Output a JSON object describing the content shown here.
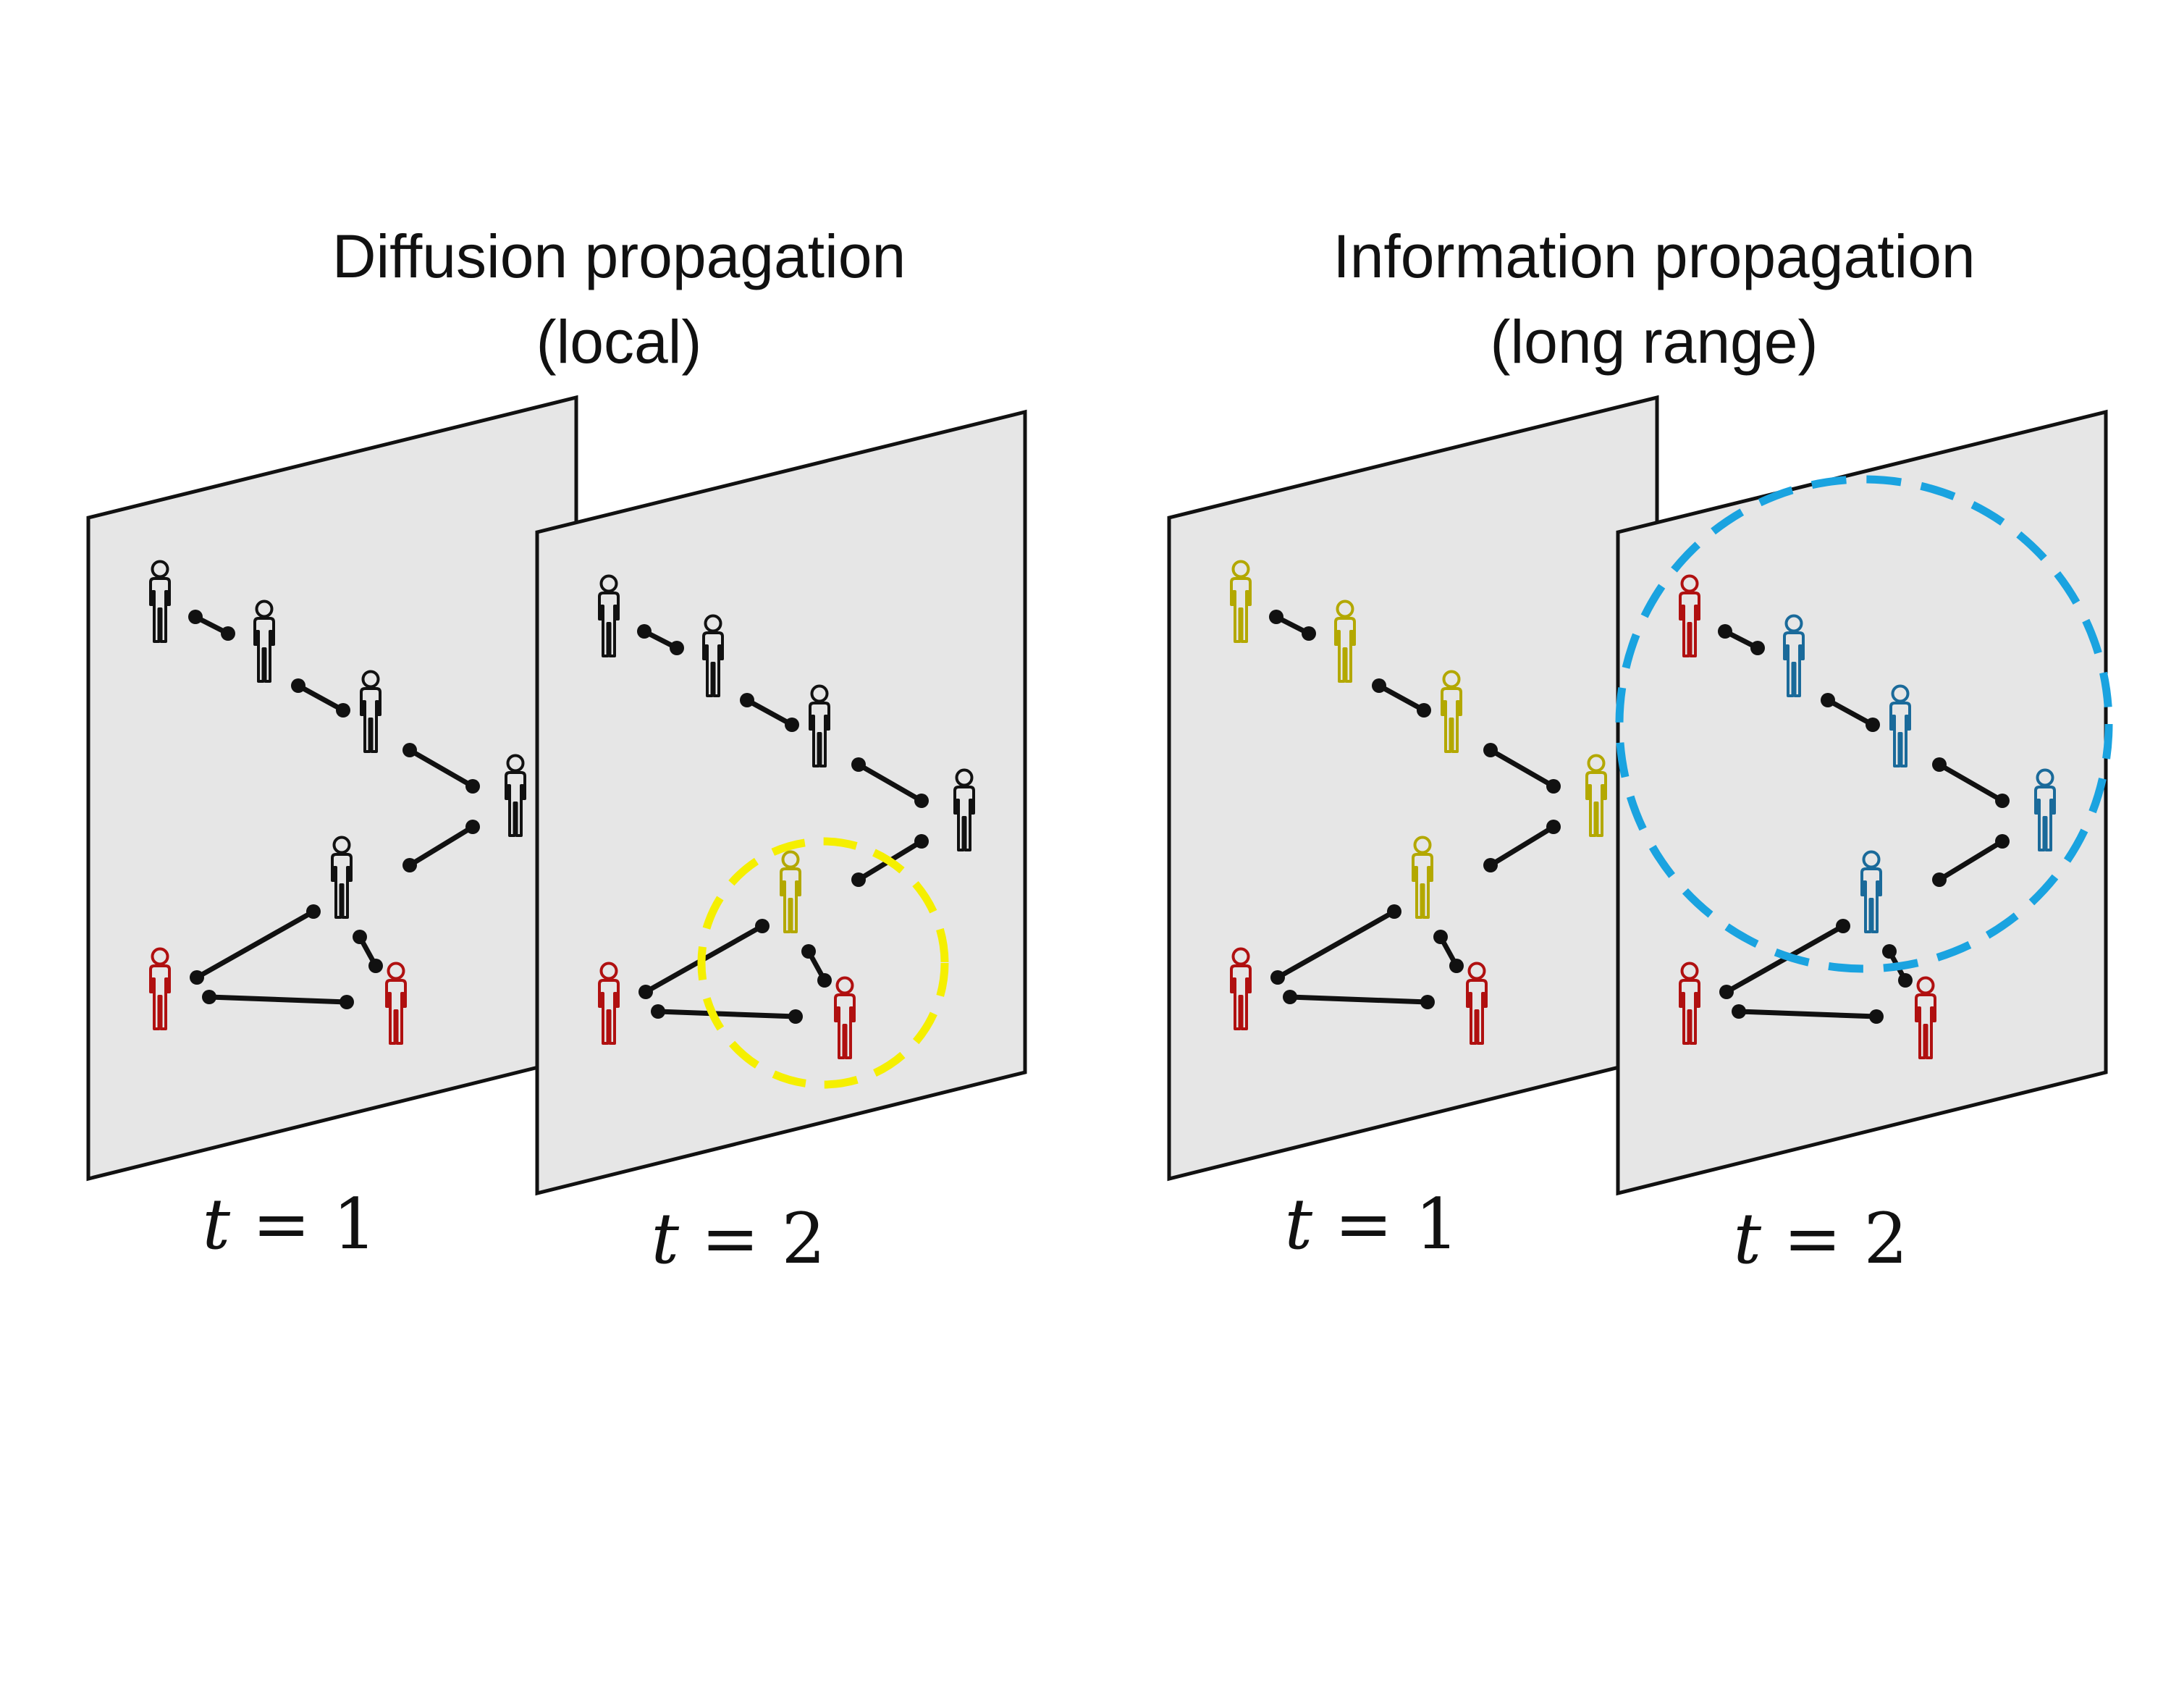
{
  "panels": {
    "diffusion": {
      "title_line1": "Diffusion propagation",
      "title_line2": "(local)",
      "highlight_color": "#f5ef00",
      "frame_t1": {
        "time_var": "t",
        "time_eq": "= 1",
        "person_colors": [
          "#111111",
          "#111111",
          "#111111",
          "#111111",
          "#111111",
          "#b01010",
          "#b01010"
        ]
      },
      "frame_t2": {
        "time_var": "t",
        "time_eq": "= 2",
        "person_colors": [
          "#111111",
          "#111111",
          "#111111",
          "#111111",
          "#b3a800",
          "#b01010",
          "#b01010"
        ]
      }
    },
    "information": {
      "title_line1": "Information propagation",
      "title_line2": "(long range)",
      "highlight_color": "#1aa3e0",
      "frame_t1": {
        "time_var": "t",
        "time_eq": "= 1",
        "person_colors": [
          "#b3a800",
          "#b3a800",
          "#b3a800",
          "#b3a800",
          "#b3a800",
          "#b01010",
          "#b01010"
        ]
      },
      "frame_t2": {
        "time_var": "t",
        "time_eq": "= 2",
        "person_colors": [
          "#b01010",
          "#1a6a9a",
          "#1a6a9a",
          "#1a6a9a",
          "#1a6a9a",
          "#b01010",
          "#b01010"
        ]
      }
    }
  },
  "colors": {
    "frame_fill": "#e6e6e6",
    "frame_stroke": "#111111",
    "edge": "#111111"
  }
}
